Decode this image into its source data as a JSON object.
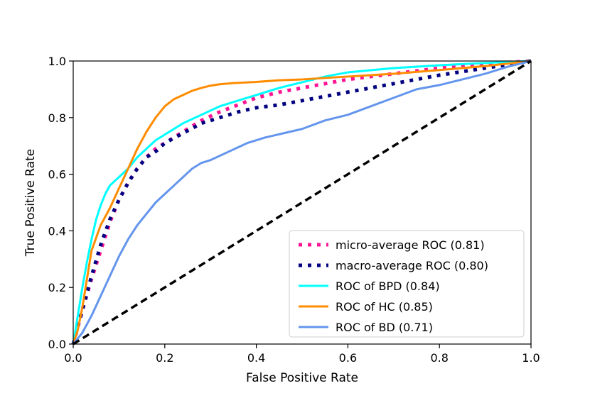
{
  "chart_data": {
    "type": "line",
    "title": "",
    "xlabel": "False Positive Rate",
    "ylabel": "True Positive Rate",
    "xlim": [
      0.0,
      1.0
    ],
    "ylim": [
      0.0,
      1.0
    ],
    "xticks": [
      "0.0",
      "0.2",
      "0.4",
      "0.6",
      "0.8",
      "1.0"
    ],
    "yticks": [
      "0.0",
      "0.2",
      "0.4",
      "0.6",
      "0.8",
      "1.0"
    ],
    "grid": false,
    "legend_position": "lower-right",
    "series": [
      {
        "name": "micro-average ROC (0.81)",
        "color": "#ff1493",
        "style": "dotted",
        "x": [
          0,
          0.02,
          0.04,
          0.06,
          0.08,
          0.1,
          0.12,
          0.14,
          0.16,
          0.18,
          0.2,
          0.24,
          0.28,
          0.32,
          0.36,
          0.4,
          0.45,
          0.5,
          0.55,
          0.6,
          0.7,
          0.8,
          0.9,
          1.0
        ],
        "y": [
          0,
          0.12,
          0.23,
          0.33,
          0.43,
          0.51,
          0.57,
          0.62,
          0.66,
          0.69,
          0.71,
          0.75,
          0.79,
          0.82,
          0.845,
          0.87,
          0.89,
          0.905,
          0.92,
          0.935,
          0.955,
          0.975,
          0.99,
          1.0
        ]
      },
      {
        "name": "macro-average ROC (0.80)",
        "color": "#000080",
        "style": "dotted",
        "x": [
          0,
          0.02,
          0.04,
          0.06,
          0.08,
          0.1,
          0.12,
          0.14,
          0.16,
          0.18,
          0.2,
          0.24,
          0.28,
          0.32,
          0.36,
          0.4,
          0.45,
          0.5,
          0.55,
          0.6,
          0.65,
          0.7,
          0.8,
          0.9,
          1.0
        ],
        "y": [
          0,
          0.12,
          0.24,
          0.35,
          0.44,
          0.51,
          0.57,
          0.62,
          0.66,
          0.68,
          0.71,
          0.745,
          0.78,
          0.8,
          0.82,
          0.835,
          0.845,
          0.86,
          0.875,
          0.89,
          0.905,
          0.92,
          0.95,
          0.975,
          1.0
        ]
      },
      {
        "name": "ROC of BPD (0.84)",
        "color": "#00ffff",
        "style": "solid",
        "x": [
          0,
          0.01,
          0.02,
          0.03,
          0.04,
          0.05,
          0.06,
          0.07,
          0.08,
          0.1,
          0.12,
          0.14,
          0.16,
          0.18,
          0.2,
          0.24,
          0.28,
          0.32,
          0.36,
          0.4,
          0.45,
          0.5,
          0.55,
          0.6,
          0.7,
          0.8,
          0.9,
          1.0
        ],
        "y": [
          0,
          0.1,
          0.2,
          0.29,
          0.37,
          0.44,
          0.49,
          0.53,
          0.56,
          0.59,
          0.62,
          0.66,
          0.69,
          0.72,
          0.74,
          0.78,
          0.81,
          0.84,
          0.86,
          0.88,
          0.905,
          0.925,
          0.945,
          0.96,
          0.975,
          0.985,
          0.993,
          1.0
        ]
      },
      {
        "name": "ROC of HC (0.85)",
        "color": "#ff8c00",
        "style": "solid",
        "x": [
          0,
          0.01,
          0.02,
          0.03,
          0.04,
          0.06,
          0.08,
          0.1,
          0.12,
          0.14,
          0.16,
          0.18,
          0.2,
          0.22,
          0.24,
          0.26,
          0.28,
          0.3,
          0.32,
          0.35,
          0.4,
          0.45,
          0.5,
          0.55,
          0.6,
          0.7,
          0.8,
          0.9,
          1.0
        ],
        "y": [
          0,
          0.05,
          0.13,
          0.23,
          0.33,
          0.42,
          0.48,
          0.55,
          0.62,
          0.69,
          0.75,
          0.8,
          0.84,
          0.865,
          0.88,
          0.895,
          0.905,
          0.913,
          0.918,
          0.922,
          0.926,
          0.932,
          0.935,
          0.94,
          0.945,
          0.955,
          0.968,
          0.982,
          1.0
        ]
      },
      {
        "name": "ROC of BD (0.71)",
        "color": "#6495ed",
        "style": "solid",
        "x": [
          0,
          0.02,
          0.04,
          0.06,
          0.08,
          0.1,
          0.12,
          0.14,
          0.16,
          0.18,
          0.2,
          0.22,
          0.24,
          0.26,
          0.28,
          0.3,
          0.34,
          0.38,
          0.42,
          0.46,
          0.5,
          0.55,
          0.6,
          0.65,
          0.7,
          0.75,
          0.8,
          0.85,
          0.9,
          0.95,
          1.0
        ],
        "y": [
          0,
          0.04,
          0.1,
          0.17,
          0.24,
          0.31,
          0.37,
          0.42,
          0.46,
          0.5,
          0.53,
          0.56,
          0.59,
          0.62,
          0.64,
          0.65,
          0.68,
          0.71,
          0.73,
          0.745,
          0.76,
          0.79,
          0.81,
          0.84,
          0.87,
          0.9,
          0.915,
          0.935,
          0.955,
          0.98,
          1.0
        ]
      },
      {
        "name": "chance",
        "color": "#000000",
        "style": "dashed",
        "x": [
          0,
          1
        ],
        "y": [
          0,
          1
        ]
      }
    ],
    "legend": [
      {
        "label": "micro-average ROC (0.81)",
        "color": "#ff1493",
        "style": "dotted"
      },
      {
        "label": "macro-average ROC (0.80)",
        "color": "#000080",
        "style": "dotted"
      },
      {
        "label": "ROC of BPD (0.84)",
        "color": "#00ffff",
        "style": "solid"
      },
      {
        "label": "ROC of HC (0.85)",
        "color": "#ff8c00",
        "style": "solid"
      },
      {
        "label": "ROC of BD (0.71)",
        "color": "#6495ed",
        "style": "solid"
      }
    ]
  }
}
